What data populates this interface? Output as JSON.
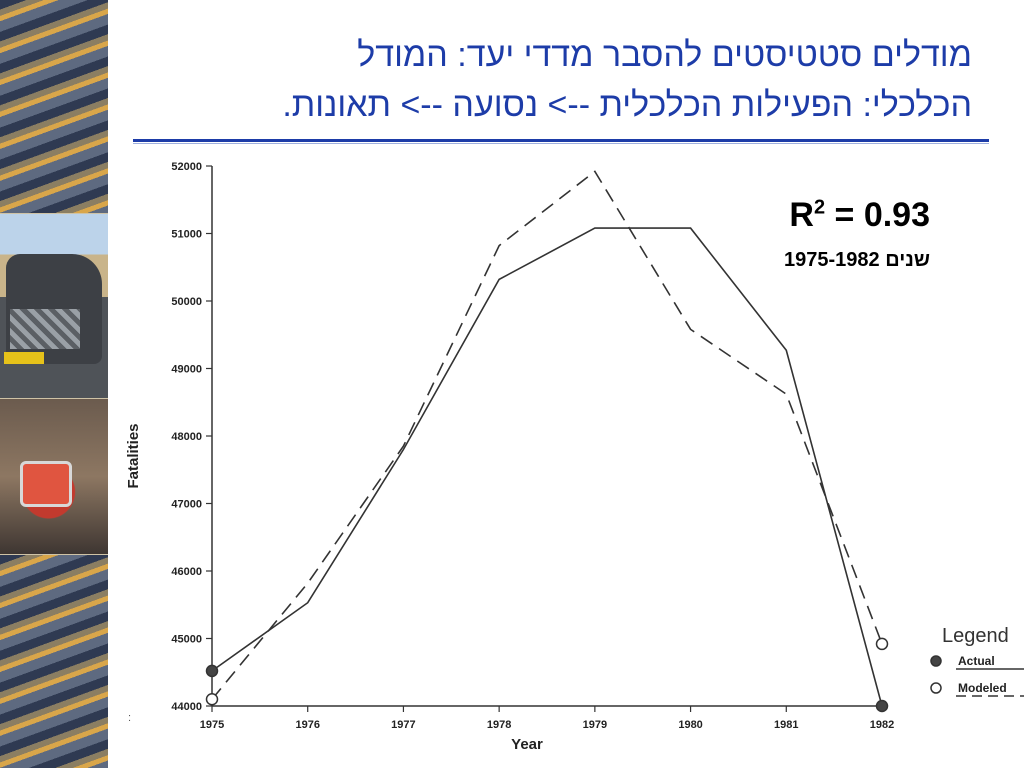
{
  "slide": {
    "title_line1": "מודלים סטטיסטים להסבר מדדי יעד: המודל",
    "title_line2": "הכלכלי: הפעילות הכלכלית --> נסועה --> תאונות."
  },
  "stats": {
    "r2_label": "R",
    "r2_sup": "2",
    "r2_value": " = 0.93",
    "years_text": "שנים  1975-1982"
  },
  "side_mark": ":",
  "colors": {
    "title": "#1d3ca8",
    "rule": "#1d3ca8"
  },
  "chart_data": {
    "type": "line",
    "xlabel": "Year",
    "ylabel": "Fatalities",
    "categories": [
      "1975",
      "1976",
      "1977",
      "1978",
      "1979",
      "1980",
      "1981",
      "1982"
    ],
    "y_ticks": [
      "52000",
      "51000",
      "50000",
      "49000",
      "48000",
      "47000",
      "46000",
      "45000",
      "44000"
    ],
    "ylim": [
      44000,
      52000
    ],
    "legend_title": "Legend",
    "legend_position": "bottom-right",
    "grid": false,
    "series": [
      {
        "name": "Actual",
        "style": "solid",
        "marker": "filled-circle",
        "values": [
          44520,
          45530,
          47800,
          50320,
          51080,
          51080,
          49270,
          44000
        ]
      },
      {
        "name": "Modeled",
        "style": "dashed",
        "marker": "open-circle",
        "values": [
          44100,
          45820,
          47850,
          50820,
          51920,
          49580,
          48620,
          44920
        ]
      }
    ]
  }
}
